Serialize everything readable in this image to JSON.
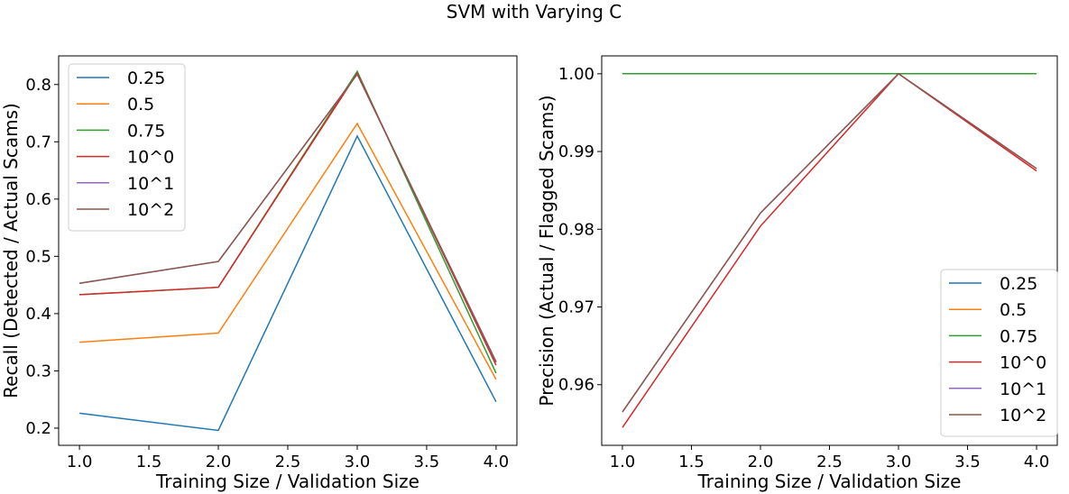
{
  "figure": {
    "title": "SVM with Varying C"
  },
  "chart_data": [
    {
      "type": "line",
      "title": "",
      "xlabel": "Training Size / Validation Size",
      "ylabel": "Recall (Detected / Actual Scams)",
      "x": [
        1,
        2,
        3,
        4
      ],
      "xlim": [
        0.85,
        4.15
      ],
      "ylim": [
        0.17,
        0.85
      ],
      "xticks": [
        1.0,
        1.5,
        2.0,
        2.5,
        3.0,
        3.5,
        4.0
      ],
      "xtick_labels": [
        "1.0",
        "1.5",
        "2.0",
        "2.5",
        "3.0",
        "3.5",
        "4.0"
      ],
      "yticks": [
        0.2,
        0.3,
        0.4,
        0.5,
        0.6,
        0.7,
        0.8
      ],
      "ytick_labels": [
        "0.2",
        "0.3",
        "0.4",
        "0.5",
        "0.6",
        "0.7",
        "0.8"
      ],
      "legend_position": "top-left",
      "series": [
        {
          "name": "0.25",
          "color": "#1f77b4",
          "values": [
            0.226,
            0.196,
            0.71,
            0.246
          ]
        },
        {
          "name": "0.5",
          "color": "#ff7f0e",
          "values": [
            0.35,
            0.366,
            0.732,
            0.285
          ]
        },
        {
          "name": "0.75",
          "color": "#2ca02c",
          "values": [
            0.433,
            0.446,
            0.823,
            0.296
          ]
        },
        {
          "name": "10^0",
          "color": "#d62728",
          "values": [
            0.433,
            0.446,
            0.82,
            0.31
          ]
        },
        {
          "name": "10^1",
          "color": "#9467bd",
          "values": [
            0.453,
            0.491,
            0.818,
            0.315
          ]
        },
        {
          "name": "10^2",
          "color": "#8c564b",
          "values": [
            0.453,
            0.491,
            0.818,
            0.316
          ]
        }
      ]
    },
    {
      "type": "line",
      "title": "",
      "xlabel": "Training Size / Validation Size",
      "ylabel": "Precision (Actual / Flagged Scams)",
      "x": [
        1,
        2,
        3,
        4
      ],
      "xlim": [
        0.85,
        4.15
      ],
      "ylim": [
        0.9522,
        1.0023
      ],
      "xticks": [
        1.0,
        1.5,
        2.0,
        2.5,
        3.0,
        3.5,
        4.0
      ],
      "xtick_labels": [
        "1.0",
        "1.5",
        "2.0",
        "2.5",
        "3.0",
        "3.5",
        "4.0"
      ],
      "yticks": [
        0.96,
        0.97,
        0.98,
        0.99,
        1.0
      ],
      "ytick_labels": [
        "0.96",
        "0.97",
        "0.98",
        "0.99",
        "1.00"
      ],
      "legend_position": "bottom-right",
      "series": [
        {
          "name": "0.25",
          "color": "#1f77b4",
          "values": [
            1.0,
            1.0,
            1.0,
            1.0
          ]
        },
        {
          "name": "0.5",
          "color": "#ff7f0e",
          "values": [
            1.0,
            1.0,
            1.0,
            1.0
          ]
        },
        {
          "name": "0.75",
          "color": "#2ca02c",
          "values": [
            1.0,
            1.0,
            1.0,
            1.0
          ]
        },
        {
          "name": "10^0",
          "color": "#d62728",
          "values": [
            0.9545,
            0.9804,
            1.0,
            0.9875
          ]
        },
        {
          "name": "10^1",
          "color": "#9467bd",
          "values": [
            0.9565,
            0.9821,
            1.0,
            0.9878
          ]
        },
        {
          "name": "10^2",
          "color": "#8c564b",
          "values": [
            0.9565,
            0.9821,
            1.0,
            0.9878
          ]
        }
      ]
    }
  ]
}
